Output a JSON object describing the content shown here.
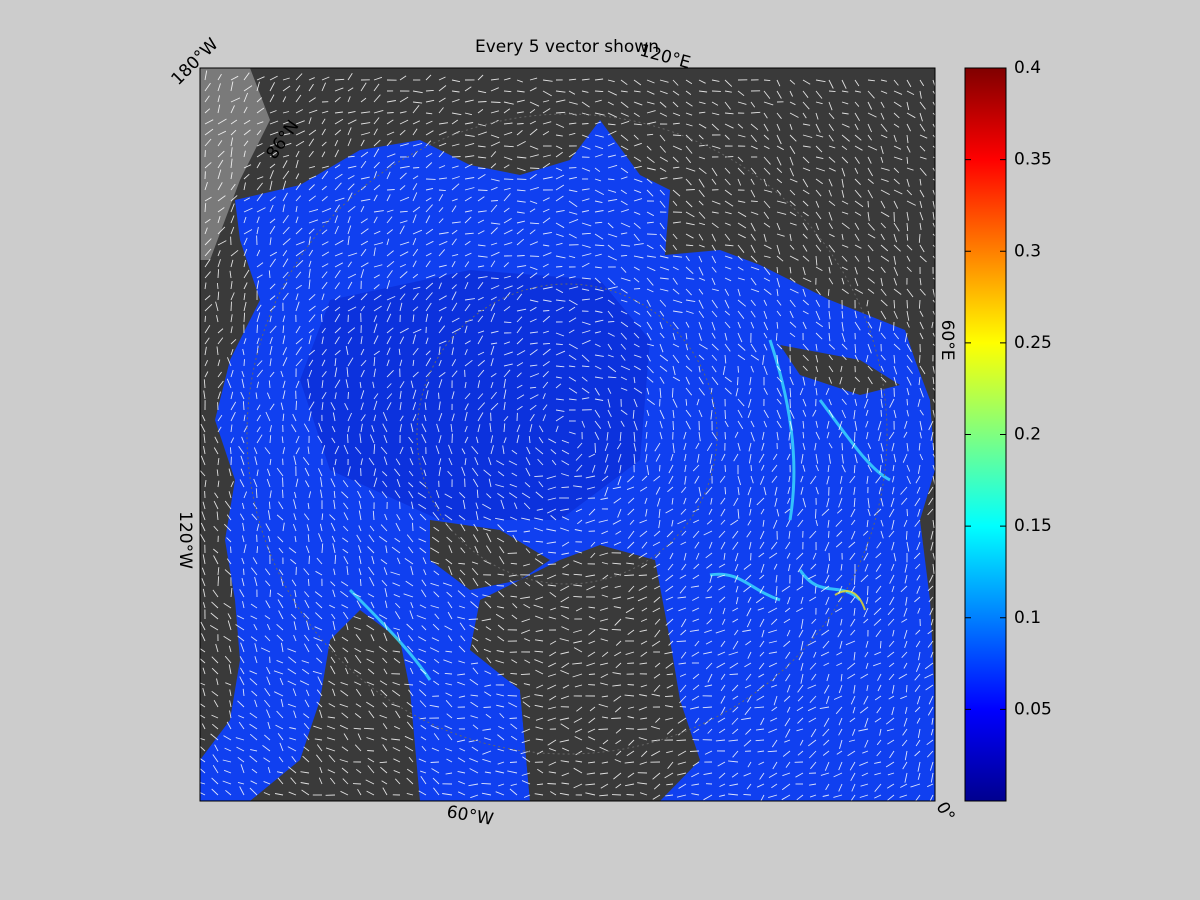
{
  "title": "Every 5 vector shown",
  "map": {
    "labels": [
      "180°W",
      "120°E",
      "60°E",
      "0°",
      "60°W",
      "120°W",
      "86°N"
    ]
  },
  "colorbar": {
    "colormap": "jet",
    "lim": [
      0,
      0.4
    ],
    "ticks": [
      0.05,
      0.1,
      0.15,
      0.2,
      0.25,
      0.3,
      0.35,
      0.4
    ]
  }
}
